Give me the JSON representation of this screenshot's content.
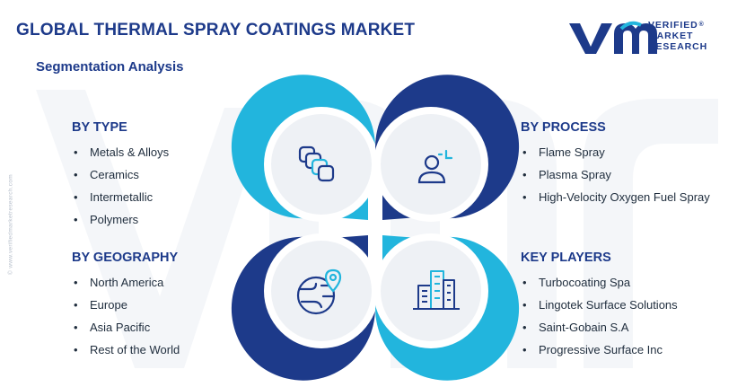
{
  "header": {
    "title": "GLOBAL THERMAL SPRAY COATINGS MARKET",
    "subtitle": "Segmentation Analysis"
  },
  "logo": {
    "line1": "VERIFIED",
    "line2": "MARKET",
    "line3": "RESEARCH",
    "registered": "®"
  },
  "side_url": "© www.verifiedmarketresearch.com",
  "sections": {
    "type": {
      "heading": "BY TYPE",
      "items": [
        "Metals & Alloys",
        "Ceramics",
        "Intermetallic",
        "Polymers"
      ]
    },
    "geography": {
      "heading": "BY GEOGRAPHY",
      "items": [
        "North America",
        "Europe",
        "Asia Pacific",
        "Rest of the World"
      ]
    },
    "process": {
      "heading": "BY PROCESS",
      "items": [
        "Flame Spray",
        "Plasma Spray",
        "High-Velocity Oxygen Fuel Spray"
      ]
    },
    "players": {
      "heading": "KEY PLAYERS",
      "items": [
        "Turbocoating Spa",
        "Lingotek Surface Solutions",
        "Saint-Gobain S.A",
        "Progressive Surface Inc"
      ]
    }
  },
  "colors": {
    "navy": "#1d3a8a",
    "cyan": "#22b5dd",
    "circle_fill": "#eef1f5",
    "text": "#1f2d3d"
  },
  "icons": {
    "type": "layers-icon",
    "process": "worker-icon",
    "geography": "globe-pin-icon",
    "players": "buildings-icon"
  }
}
